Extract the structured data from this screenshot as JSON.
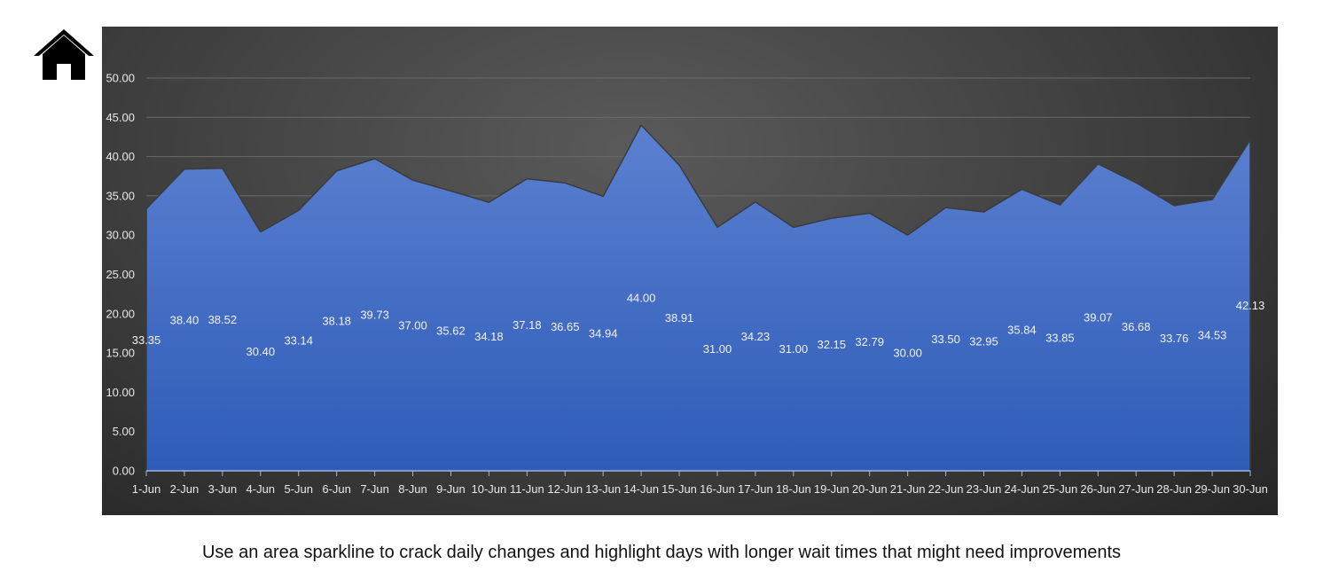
{
  "home": {
    "icon": "home-icon"
  },
  "caption": "Use an area sparkline to crack daily changes and highlight days with longer wait times that might need improvements",
  "chart_data": {
    "type": "area",
    "title": "",
    "xlabel": "",
    "ylabel": "",
    "categories": [
      "1-Jun",
      "2-Jun",
      "3-Jun",
      "4-Jun",
      "5-Jun",
      "6-Jun",
      "7-Jun",
      "8-Jun",
      "9-Jun",
      "10-Jun",
      "11-Jun",
      "12-Jun",
      "13-Jun",
      "14-Jun",
      "15-Jun",
      "16-Jun",
      "17-Jun",
      "18-Jun",
      "19-Jun",
      "20-Jun",
      "21-Jun",
      "22-Jun",
      "23-Jun",
      "24-Jun",
      "25-Jun",
      "26-Jun",
      "27-Jun",
      "28-Jun",
      "29-Jun",
      "30-Jun"
    ],
    "values": [
      33.35,
      38.4,
      38.52,
      30.4,
      33.14,
      38.18,
      39.73,
      37.0,
      35.62,
      34.18,
      37.18,
      36.65,
      34.94,
      44.0,
      38.91,
      31.0,
      34.23,
      31.0,
      32.15,
      32.79,
      30.0,
      33.5,
      32.95,
      35.84,
      33.85,
      39.07,
      36.68,
      33.76,
      34.53,
      42.13
    ],
    "data_labels": [
      "33.35",
      "38.40",
      "38.52",
      "30.40",
      "33.14",
      "38.18",
      "39.73",
      "37.00",
      "35.62",
      "34.18",
      "37.18",
      "36.65",
      "34.94",
      "44.00",
      "38.91",
      "31.00",
      "34.23",
      "31.00",
      "32.15",
      "32.79",
      "30.00",
      "33.50",
      "32.95",
      "35.84",
      "33.85",
      "39.07",
      "36.68",
      "33.76",
      "34.53",
      "42.13"
    ],
    "y_ticks": [
      "0.00",
      "5.00",
      "10.00",
      "15.00",
      "20.00",
      "25.00",
      "30.00",
      "35.00",
      "40.00",
      "45.00",
      "50.00"
    ],
    "ylim": [
      0,
      50
    ],
    "grid": true,
    "legend": "none",
    "colors": {
      "fill_top": "#5b80d0",
      "fill_bottom": "#2e5cb8",
      "background": "#3e3e3e",
      "text": "#e8e8e8"
    }
  }
}
